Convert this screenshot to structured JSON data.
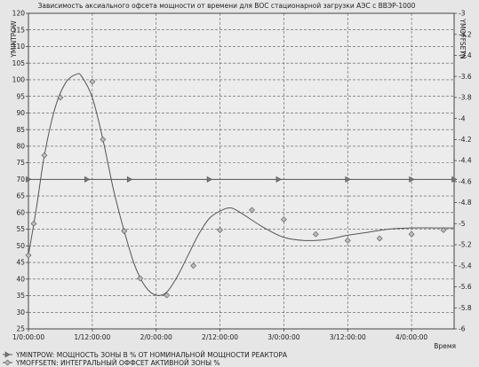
{
  "chart_data": {
    "type": "line",
    "title": "Зависимость аксиального офсета мощности от времени для ВОС стационарной загрузки АЭС с ВВЭР-1000",
    "xlabel": "Время",
    "ylabel_left": "YMINTPOW",
    "ylabel_right": "YMOFFSETN",
    "x_ticks": [
      "1/0:00:00",
      "1/12:00:00",
      "2/0:00:00",
      "2/12:00:00",
      "3/0:00:00",
      "3/12:00:00",
      "4/0:00:00"
    ],
    "x_range_hours": [
      0,
      80
    ],
    "ylim_left": [
      25,
      120
    ],
    "yticks_left": [
      25,
      30,
      35,
      40,
      45,
      50,
      55,
      60,
      65,
      70,
      75,
      80,
      85,
      90,
      95,
      100,
      105,
      110,
      115,
      120
    ],
    "ylim_right": [
      -6.0,
      -3.0
    ],
    "yticks_right": [
      "-3",
      "-3.2",
      "-3.4",
      "-3.6",
      "-3.8",
      "-4",
      "-4.2",
      "-4.4",
      "-4.6",
      "-4.8",
      "-5",
      "-5.2",
      "-5.4",
      "-5.6",
      "-5.8",
      "-6"
    ],
    "grid": true,
    "legend_position": "bottom-left",
    "series": [
      {
        "name": "YMINTPOW: МОЩНОСТЬ ЗОНЫ В % ОТ НОМИНАЛЬНОЙ МОЩНОСТИ РЕАКТОРА",
        "axis": "left",
        "color": "#555555",
        "marker": "triangle",
        "x_hours": [
          0,
          11,
          19,
          34,
          47,
          60,
          72,
          80
        ],
        "values": [
          70,
          70,
          70,
          70,
          70,
          70,
          70,
          70
        ]
      },
      {
        "name": "YMOFFSETN: ИНТЕГРАЛЬНЫЙ ОФФСЕТ АКТИВНОЙ ЗОНЫ %",
        "axis": "right",
        "color": "#555555",
        "marker": "diamond",
        "curve_x_hours": [
          0,
          1.5,
          3,
          5,
          7,
          9,
          10,
          12,
          14,
          16,
          18,
          20,
          22,
          24,
          26,
          28,
          30,
          32,
          34,
          36,
          38,
          40,
          44,
          48,
          52,
          56,
          60,
          64,
          68,
          72,
          76,
          80
        ],
        "curve_values": [
          -5.3,
          -4.85,
          -4.35,
          -3.9,
          -3.66,
          -3.58,
          -3.6,
          -3.8,
          -4.2,
          -4.68,
          -5.07,
          -5.4,
          -5.6,
          -5.68,
          -5.65,
          -5.5,
          -5.3,
          -5.1,
          -4.95,
          -4.88,
          -4.85,
          -4.9,
          -5.03,
          -5.13,
          -5.16,
          -5.15,
          -5.11,
          -5.08,
          -5.05,
          -5.04,
          -5.04,
          -5.04
        ],
        "marker_x_hours": [
          0,
          1,
          3,
          6,
          12,
          14,
          18,
          21,
          26,
          31,
          36,
          42,
          48,
          54,
          60,
          66,
          72,
          78
        ],
        "marker_values": [
          -5.3,
          -5.0,
          -4.35,
          -3.8,
          -3.65,
          -4.2,
          -5.07,
          -5.52,
          -5.68,
          -5.4,
          -5.06,
          -4.87,
          -4.96,
          -5.1,
          -5.16,
          -5.14,
          -5.1,
          -5.06
        ]
      }
    ]
  }
}
